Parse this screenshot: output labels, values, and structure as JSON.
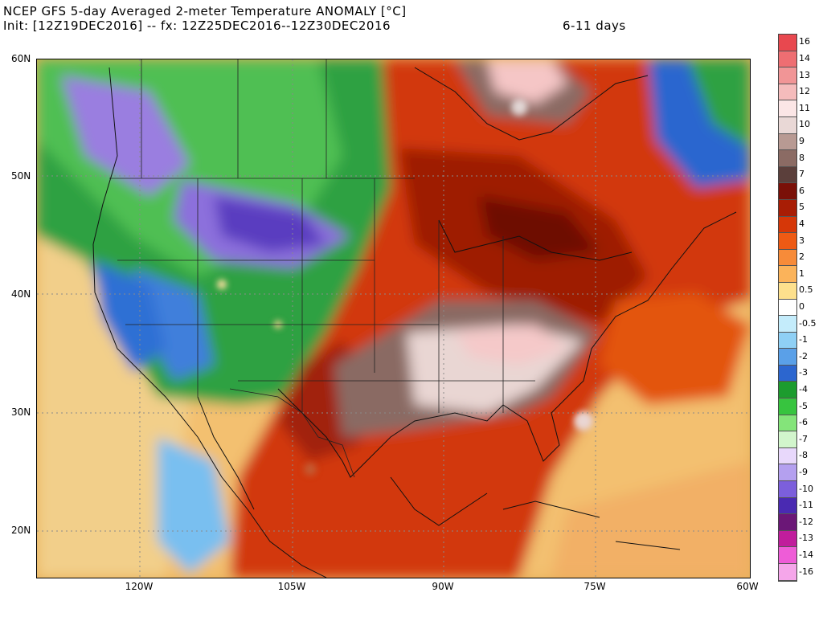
{
  "title": {
    "line1": "NCEP GFS 5-day Averaged 2-meter Temperature ANOMALY [°C]",
    "line2": "Init: [12Z19DEC2016] -- fx: 12Z25DEC2016--12Z30DEC2016",
    "lead": "6-11 days"
  },
  "map": {
    "lat_labels": [
      "60N",
      "50N",
      "40N",
      "30N",
      "20N"
    ],
    "lon_labels": [
      "120W",
      "105W",
      "90W",
      "75W",
      "60W"
    ]
  },
  "colorbar": {
    "labels": [
      "16",
      "14",
      "13",
      "12",
      "11",
      "10",
      "9",
      "8",
      "7",
      "6",
      "5",
      "4",
      "3",
      "2",
      "1",
      "0.5",
      "0",
      "-0.5",
      "-1",
      "-2",
      "-3",
      "-4",
      "-5",
      "-6",
      "-7",
      "-8",
      "-9",
      "-10",
      "-11",
      "-12",
      "-13",
      "-14",
      "-16"
    ],
    "colors": [
      "#e8484f",
      "#ee6e72",
      "#f19596",
      "#f5bcbc",
      "#fbe6e6",
      "#e9d8d6",
      "#b89a93",
      "#8b6b64",
      "#5b3f3b",
      "#7a1008",
      "#a81d05",
      "#d63708",
      "#ee5a14",
      "#f78b39",
      "#fbb35a",
      "#fde08d",
      "#ffffff",
      "#c4ecfb",
      "#8fd0f5",
      "#5aa0e8",
      "#2c66cf",
      "#1c9c2e",
      "#37c43f",
      "#84e47a",
      "#d2f5cc",
      "#e8d8fb",
      "#b4a0ef",
      "#7c5fdc",
      "#4a2ab2",
      "#6b1777",
      "#c01d9c",
      "#ee5cd7",
      "#f5a6ea"
    ]
  }
}
